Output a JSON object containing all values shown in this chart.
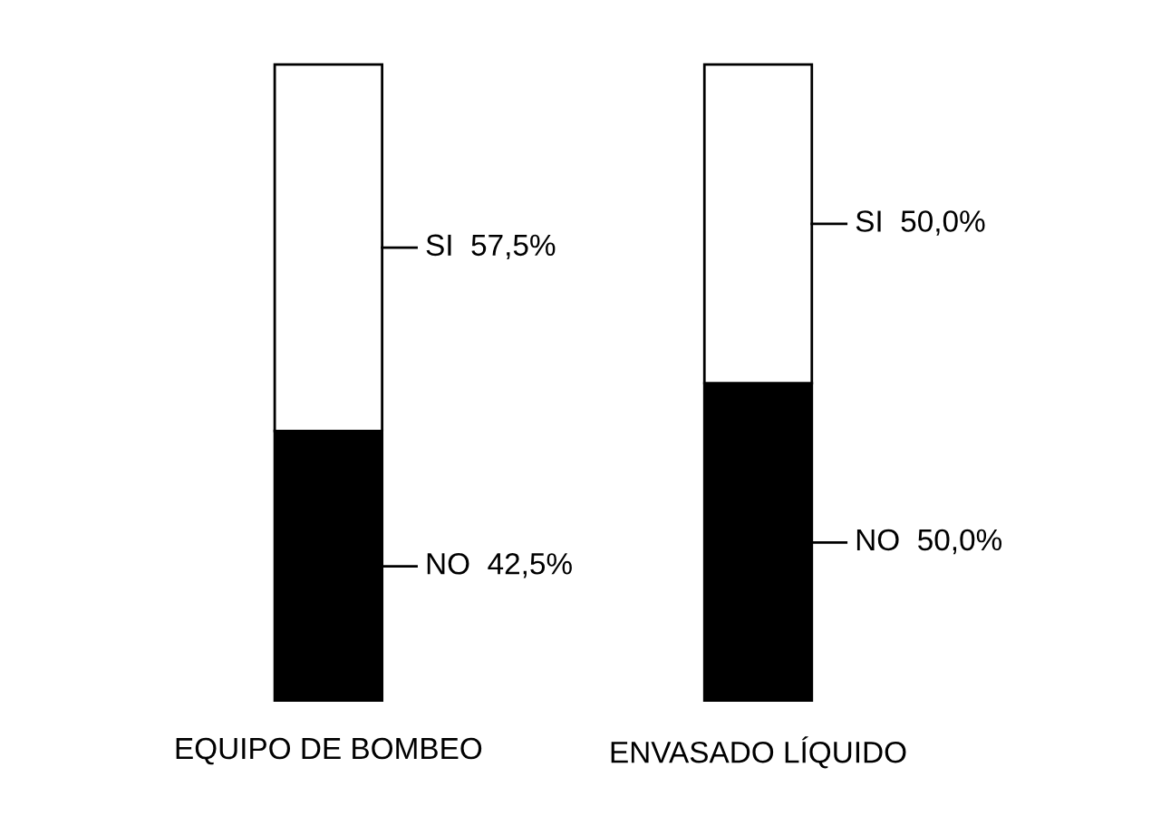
{
  "chart_data": {
    "type": "bar",
    "stacked": true,
    "categories": [
      "EQUIPO DE BOMBEO",
      "ENVASADO LÍQUIDO"
    ],
    "series": [
      {
        "color": "#000000",
        "values": [
          42.5,
          50.0
        ],
        "value_labels": [
          "NO  42,5%",
          "NO  50,0%"
        ]
      },
      {
        "color": "#ffffff",
        "values": [
          57.5,
          50.0
        ],
        "value_labels": [
          "SI  57,5%",
          "SI  50,0%"
        ]
      }
    ]
  }
}
